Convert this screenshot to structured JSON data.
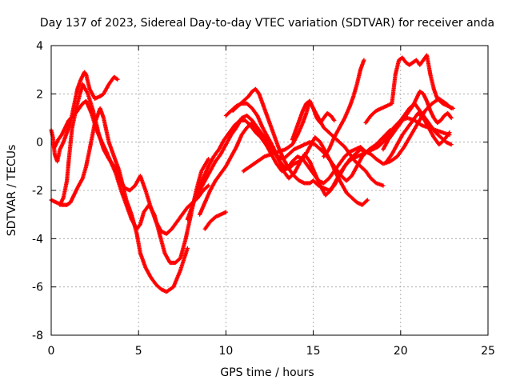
{
  "chart_data": {
    "type": "scatter",
    "title": "Day 137 of 2023, Sidereal Day-to-day VTEC variation (SDTVAR) for receiver anda",
    "xlabel": "GPS time / hours",
    "ylabel": "SDTVAR / TECUs",
    "xlim": [
      0,
      25
    ],
    "ylim": [
      -8,
      4
    ],
    "xticks": [
      "0",
      "5",
      "10",
      "15",
      "20",
      "25"
    ],
    "yticks": [
      "-8",
      "-6",
      "-4",
      "-2",
      "0",
      "2",
      "4"
    ],
    "grid": true,
    "marker": "plus",
    "series_color": "#ff0000",
    "series": [
      {
        "x": [
          0.0,
          0.1,
          0.2,
          0.35,
          0.5,
          0.7,
          0.9,
          1.1,
          1.3,
          1.5,
          1.7,
          1.9,
          2.0,
          2.2,
          2.5,
          2.8,
          3.0,
          3.3,
          3.6,
          3.8
        ],
        "y": [
          0.5,
          0.2,
          -0.5,
          -0.8,
          -0.3,
          0.0,
          0.4,
          0.8,
          1.5,
          2.2,
          2.6,
          2.9,
          2.8,
          2.2,
          1.8,
          1.9,
          2.0,
          2.4,
          2.7,
          2.6
        ]
      },
      {
        "x": [
          0.0,
          0.3,
          0.6,
          0.9,
          1.1,
          1.3,
          1.5,
          1.8,
          2.0,
          2.2,
          2.5,
          2.8,
          3.0,
          3.3,
          3.6,
          3.9,
          4.1,
          4.3,
          4.6,
          4.9,
          5.1,
          5.4,
          5.7,
          6.0,
          6.3,
          6.6,
          7.0,
          7.4,
          7.8
        ],
        "y": [
          -2.4,
          -2.5,
          -2.6,
          -2.6,
          -2.5,
          -2.2,
          -1.9,
          -1.5,
          -1.0,
          -0.3,
          0.8,
          1.4,
          1.0,
          0.0,
          -0.6,
          -1.2,
          -1.8,
          -2.4,
          -3.0,
          -3.8,
          -4.6,
          -5.2,
          -5.6,
          -5.9,
          -6.1,
          -6.2,
          -6.0,
          -5.3,
          -4.4
        ]
      },
      {
        "x": [
          0.2,
          0.4,
          0.6,
          0.8,
          1.0,
          1.4,
          1.8,
          2.0,
          2.3,
          2.6,
          2.9,
          3.1,
          3.4,
          3.7,
          4.0,
          4.3,
          4.6,
          4.9,
          5.1,
          5.3,
          5.6,
          5.9,
          6.2,
          6.5,
          6.8,
          7.1,
          7.4,
          7.7,
          8.0,
          8.3,
          8.6,
          9.0
        ],
        "y": [
          -0.2,
          0.1,
          0.3,
          0.6,
          0.9,
          1.2,
          1.6,
          1.7,
          1.2,
          0.5,
          0.0,
          -0.3,
          -0.8,
          -1.3,
          -2.0,
          -2.6,
          -3.2,
          -3.6,
          -3.4,
          -2.9,
          -2.6,
          -3.0,
          -3.8,
          -4.6,
          -5.0,
          -5.0,
          -4.8,
          -4.0,
          -3.0,
          -2.0,
          -1.2,
          -0.7
        ]
      },
      {
        "x": [
          0.5,
          0.7,
          0.9,
          1.0,
          1.2,
          1.5,
          1.8,
          2.1,
          2.4,
          2.7,
          3.0,
          3.3,
          3.6,
          3.9,
          4.2,
          4.5,
          4.8,
          5.1,
          5.4,
          5.7,
          6.0,
          6.3,
          6.6,
          6.9,
          7.2,
          7.5,
          7.8,
          8.1,
          8.4,
          8.7,
          9.0
        ],
        "y": [
          -2.6,
          -2.3,
          -1.6,
          -0.8,
          0.6,
          1.6,
          2.4,
          2.0,
          1.3,
          0.4,
          -0.3,
          -0.7,
          -1.0,
          -1.5,
          -1.9,
          -2.0,
          -1.8,
          -1.4,
          -2.0,
          -2.7,
          -3.3,
          -3.7,
          -3.8,
          -3.6,
          -3.3,
          -3.0,
          -2.7,
          -2.5,
          -2.3,
          -2.0,
          -1.8
        ]
      },
      {
        "x": [
          7.8,
          8.1,
          8.4,
          8.7,
          9.0,
          9.3,
          9.6,
          9.9,
          10.2,
          10.5,
          10.8,
          11.1,
          11.4,
          11.7,
          12.0,
          12.3,
          12.6,
          12.9,
          13.2,
          13.5,
          13.8,
          14.1,
          14.4,
          14.7,
          15.0,
          15.3,
          15.6,
          15.9,
          16.2,
          16.5,
          16.8,
          17.1,
          17.4,
          17.7,
          18.0
        ],
        "y": [
          -3.2,
          -2.6,
          -2.0,
          -1.5,
          -1.0,
          -0.6,
          -0.3,
          0.1,
          0.4,
          0.7,
          0.9,
          0.9,
          0.7,
          0.4,
          0.2,
          -0.1,
          -0.5,
          -0.9,
          -1.2,
          -1.1,
          -0.8,
          -0.6,
          -0.7,
          -1.0,
          -1.3,
          -1.6,
          -1.7,
          -1.5,
          -1.2,
          -0.9,
          -0.6,
          -0.4,
          -0.3,
          -0.2,
          -0.4
        ]
      },
      {
        "x": [
          8.2,
          8.5,
          8.8,
          9.1,
          9.4,
          9.7,
          10.0,
          10.3,
          10.6,
          10.9,
          11.2,
          11.5,
          11.8,
          12.1,
          12.4,
          12.7,
          13.0,
          13.3,
          13.6,
          13.9,
          14.2,
          14.5,
          14.8,
          15.1,
          15.4,
          15.7,
          16.0,
          16.3,
          16.6,
          16.9,
          17.2,
          17.5,
          17.8,
          18.1
        ],
        "y": [
          -2.4,
          -2.0,
          -1.6,
          -1.2,
          -0.8,
          -0.5,
          -0.1,
          0.3,
          0.6,
          1.0,
          1.1,
          0.9,
          0.6,
          0.3,
          0.0,
          -0.3,
          -0.7,
          -1.0,
          -1.1,
          -0.9,
          -0.8,
          -0.6,
          -0.2,
          0.2,
          0.0,
          -0.4,
          -0.8,
          -1.3,
          -1.7,
          -2.1,
          -2.3,
          -2.5,
          -2.6,
          -2.4
        ]
      },
      {
        "x": [
          8.5,
          8.8,
          9.1,
          9.4,
          9.7,
          10.0,
          10.3,
          10.6,
          10.9,
          11.2,
          11.5,
          11.8,
          12.1,
          12.4,
          12.7,
          13.0,
          13.3,
          13.6,
          13.9,
          14.2,
          14.5,
          14.8,
          15.1,
          15.4,
          15.7,
          16.0,
          16.3,
          16.6,
          16.9,
          17.2,
          17.5,
          17.8,
          18.2,
          18.6,
          19.0,
          19.4
        ],
        "y": [
          -3.0,
          -2.5,
          -2.0,
          -1.6,
          -1.3,
          -1.0,
          -0.6,
          -0.2,
          0.3,
          0.6,
          0.8,
          0.5,
          0.1,
          -0.2,
          -0.4,
          -0.6,
          -0.7,
          -0.5,
          -0.3,
          -0.2,
          -0.1,
          0.0,
          -0.1,
          -0.3,
          -0.5,
          -0.8,
          -1.1,
          -1.4,
          -1.6,
          -1.4,
          -1.0,
          -0.6,
          -0.3,
          -0.1,
          0.2,
          0.5
        ]
      },
      {
        "x": [
          8.8,
          9.1,
          9.4,
          9.7,
          10.0
        ],
        "y": [
          -3.6,
          -3.3,
          -3.1,
          -3.0,
          -2.9
        ]
      },
      {
        "x": [
          10.0,
          10.3,
          10.6,
          10.9,
          11.2,
          11.5,
          11.8,
          12.1,
          12.4,
          12.7,
          13.0,
          13.3,
          13.6,
          13.9,
          14.2,
          14.5,
          14.8,
          15.1,
          15.4,
          15.7,
          16.0,
          16.3,
          16.6,
          16.9,
          17.2,
          17.5,
          17.8,
          18.1,
          18.4,
          18.7,
          19.0,
          19.3,
          19.6,
          20.0,
          20.4,
          20.8,
          21.2,
          21.6,
          22.0,
          22.4,
          22.8
        ],
        "y": [
          1.1,
          1.3,
          1.5,
          1.6,
          1.6,
          1.4,
          1.1,
          0.6,
          0.2,
          -0.2,
          -0.7,
          -1.2,
          -1.5,
          -1.3,
          -0.9,
          -0.5,
          -0.8,
          -1.3,
          -1.8,
          -2.2,
          -2.0,
          -1.6,
          -1.2,
          -0.9,
          -0.7,
          -0.6,
          -0.5,
          -0.4,
          -0.3,
          -0.2,
          0.0,
          0.3,
          0.6,
          0.9,
          1.0,
          0.9,
          0.7,
          0.6,
          0.5,
          0.4,
          0.3
        ]
      },
      {
        "x": [
          10.4,
          10.7,
          11.0,
          11.3,
          11.5,
          11.7,
          11.9,
          12.1,
          12.4,
          12.7,
          13.0,
          13.3,
          13.6,
          13.9,
          14.2,
          14.5,
          14.8,
          15.0,
          15.3,
          15.6,
          15.9,
          16.2,
          16.5,
          16.8,
          17.1,
          17.4,
          17.7,
          18.0,
          18.3,
          18.6,
          19.0,
          19.4,
          19.8,
          20.2,
          20.6,
          21.0,
          21.4,
          21.8,
          22.2,
          22.6,
          22.9
        ],
        "y": [
          1.3,
          1.5,
          1.7,
          1.9,
          2.1,
          2.2,
          2.0,
          1.6,
          1.0,
          0.4,
          -0.2,
          -0.7,
          -1.1,
          -1.4,
          -1.6,
          -1.7,
          -1.7,
          -1.6,
          -1.8,
          -1.9,
          -2.0,
          -1.8,
          -1.4,
          -1.0,
          -0.7,
          -0.5,
          -0.3,
          -0.4,
          -0.5,
          -0.7,
          -0.9,
          -0.8,
          -0.6,
          -0.2,
          0.3,
          0.8,
          1.3,
          1.6,
          1.8,
          1.6,
          1.4
        ]
      },
      {
        "x": [
          11.0,
          11.4,
          11.8,
          12.2,
          12.6,
          13.0,
          13.4,
          13.8,
          14.1,
          14.4,
          14.6,
          14.8,
          15.0,
          15.3,
          15.6,
          15.9,
          16.2,
          16.5,
          16.8,
          17.1,
          17.4,
          17.7,
          18.0,
          18.3,
          18.6,
          19.0
        ],
        "y": [
          -1.2,
          -1.0,
          -0.8,
          -0.6,
          -0.5,
          -0.4,
          -0.3,
          -0.1,
          0.3,
          0.8,
          1.2,
          1.7,
          1.4,
          1.0,
          0.6,
          0.4,
          0.2,
          0.0,
          -0.2,
          -0.5,
          -0.8,
          -1.0,
          -1.2,
          -1.5,
          -1.7,
          -1.8
        ]
      },
      {
        "x": [
          13.8,
          14.0,
          14.2,
          14.4,
          14.6,
          14.8,
          15.0,
          15.2,
          15.4,
          15.6,
          15.8,
          16.0,
          16.2
        ],
        "y": [
          0.1,
          0.5,
          0.9,
          1.3,
          1.6,
          1.7,
          1.4,
          1.0,
          0.8,
          1.0,
          1.2,
          1.1,
          0.9
        ]
      },
      {
        "x": [
          15.6,
          15.9,
          16.2,
          16.5,
          16.8,
          17.1,
          17.3,
          17.5,
          17.7,
          17.9
        ],
        "y": [
          -0.6,
          -0.3,
          0.2,
          0.6,
          1.0,
          1.5,
          1.9,
          2.4,
          3.0,
          3.4
        ]
      },
      {
        "x": [
          18.0,
          18.3,
          18.6,
          18.9,
          19.2,
          19.5,
          19.7,
          19.9,
          20.1,
          20.3,
          20.5,
          20.7,
          20.9,
          21.1,
          21.3,
          21.5,
          21.7,
          21.9,
          22.1,
          22.4,
          22.7,
          23.0
        ],
        "y": [
          0.8,
          1.1,
          1.3,
          1.4,
          1.5,
          1.6,
          2.8,
          3.4,
          3.5,
          3.3,
          3.2,
          3.3,
          3.4,
          3.2,
          3.4,
          3.6,
          2.8,
          2.2,
          1.8,
          1.6,
          1.5,
          1.4
        ]
      },
      {
        "x": [
          19.0,
          19.3,
          19.6,
          19.9,
          20.1,
          20.3,
          20.5,
          20.7,
          20.9,
          21.1,
          21.3,
          21.5,
          21.7,
          21.9,
          22.1,
          22.3,
          22.5,
          22.7,
          22.9
        ],
        "y": [
          -0.3,
          0.1,
          0.4,
          0.7,
          0.9,
          1.1,
          1.3,
          1.5,
          1.8,
          2.1,
          2.0,
          1.7,
          1.3,
          1.0,
          0.8,
          0.9,
          1.1,
          1.2,
          1.0
        ]
      },
      {
        "x": [
          19.2,
          19.5,
          19.8,
          20.1,
          20.4,
          20.7,
          21.0,
          21.3,
          21.6,
          21.9,
          22.2,
          22.5,
          22.8
        ],
        "y": [
          -0.8,
          -0.5,
          -0.1,
          0.3,
          0.6,
          0.9,
          1.2,
          1.0,
          0.6,
          0.2,
          -0.1,
          0.1,
          0.4
        ]
      },
      {
        "x": [
          19.6,
          19.9,
          20.2,
          20.5,
          20.8,
          21.1,
          21.4,
          21.7,
          22.0,
          22.3,
          22.6,
          22.9
        ],
        "y": [
          0.5,
          0.8,
          1.1,
          1.4,
          1.6,
          1.3,
          1.0,
          0.7,
          0.4,
          0.2,
          0.0,
          -0.1
        ]
      }
    ]
  }
}
